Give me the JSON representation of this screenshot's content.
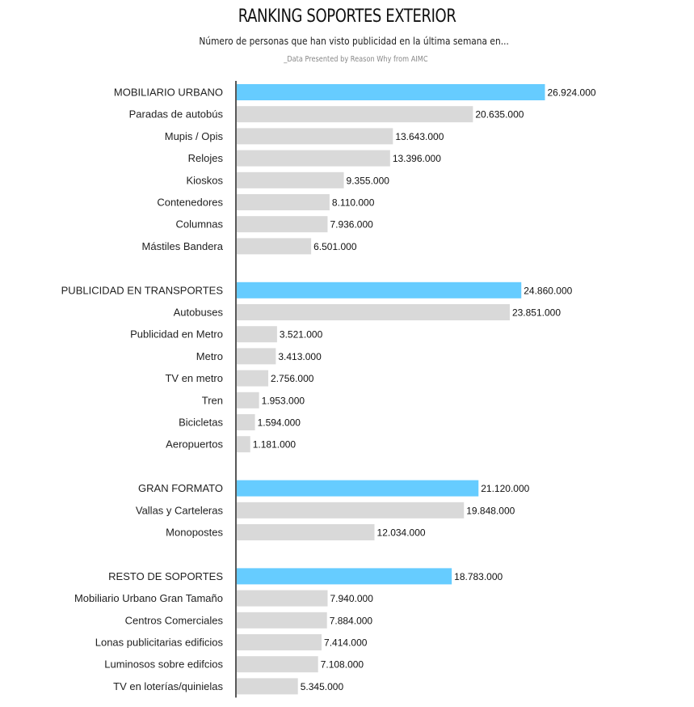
{
  "header": {
    "title": "RANKING SOPORTES EXTERIOR",
    "subtitle": "Número de personas que han visto publicidad en la última semana en...",
    "source": "_Data Presented by Reason Why from AIMC"
  },
  "colors": {
    "highlight": "#66ccff",
    "bar": "#d9d9d9",
    "axis": "#111111"
  },
  "chart_data": {
    "type": "bar",
    "orientation": "horizontal",
    "title": "RANKING SOPORTES EXTERIOR",
    "xlim": [
      0,
      27500000
    ],
    "grid": false,
    "groups": [
      {
        "name": "MOBILIARIO URBANO",
        "total": 26924000,
        "total_label": "26.924.000",
        "items": [
          {
            "label": "Paradas de autobús",
            "value": 20635000,
            "value_label": "20.635.000"
          },
          {
            "label": "Mupis / Opis",
            "value": 13643000,
            "value_label": "13.643.000"
          },
          {
            "label": "Relojes",
            "value": 13396000,
            "value_label": "13.396.000"
          },
          {
            "label": "Kioskos",
            "value": 9355000,
            "value_label": "9.355.000"
          },
          {
            "label": "Contenedores",
            "value": 8110000,
            "value_label": "8.110.000"
          },
          {
            "label": "Columnas",
            "value": 7936000,
            "value_label": "7.936.000"
          },
          {
            "label": "Mástiles Bandera",
            "value": 6501000,
            "value_label": "6.501.000"
          }
        ]
      },
      {
        "name": "PUBLICIDAD EN TRANSPORTES",
        "total": 24860000,
        "total_label": "24.860.000",
        "items": [
          {
            "label": "Autobuses",
            "value": 23851000,
            "value_label": "23.851.000"
          },
          {
            "label": "Publicidad en Metro",
            "value": 3521000,
            "value_label": "3.521.000"
          },
          {
            "label": "Metro",
            "value": 3413000,
            "value_label": "3.413.000"
          },
          {
            "label": "TV en metro",
            "value": 2756000,
            "value_label": "2.756.000"
          },
          {
            "label": "Tren",
            "value": 1953000,
            "value_label": "1.953.000"
          },
          {
            "label": "Bicicletas",
            "value": 1594000,
            "value_label": "1.594.000"
          },
          {
            "label": "Aeropuertos",
            "value": 1181000,
            "value_label": "1.181.000"
          }
        ]
      },
      {
        "name": "GRAN FORMATO",
        "total": 21120000,
        "total_label": "21.120.000",
        "items": [
          {
            "label": "Vallas y Carteleras",
            "value": 19848000,
            "value_label": "19.848.000"
          },
          {
            "label": "Monopostes",
            "value": 12034000,
            "value_label": "12.034.000"
          }
        ]
      },
      {
        "name": "RESTO DE SOPORTES",
        "total": 18783000,
        "total_label": "18.783.000",
        "items": [
          {
            "label": "Mobiliario Urbano Gran Tamaño",
            "value": 7940000,
            "value_label": "7.940.000"
          },
          {
            "label": "Centros Comerciales",
            "value": 7884000,
            "value_label": "7.884.000"
          },
          {
            "label": "Lonas publicitarias edificios",
            "value": 7414000,
            "value_label": "7.414.000"
          },
          {
            "label": "Luminosos sobre edifcios",
            "value": 7108000,
            "value_label": "7.108.000"
          },
          {
            "label": "TV en loterías/quinielas",
            "value": 5345000,
            "value_label": "5.345.000"
          }
        ]
      }
    ]
  }
}
